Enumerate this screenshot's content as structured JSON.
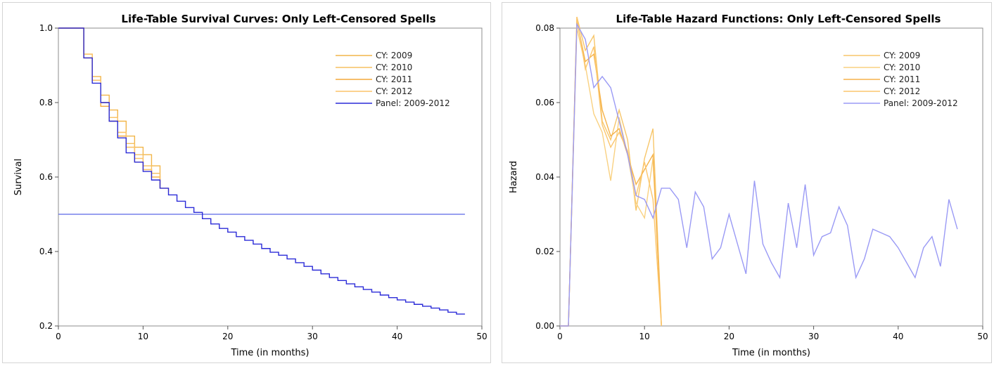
{
  "chart_data": [
    {
      "type": "line",
      "step": true,
      "title": "Life-Table Survival Curves: Only Left-Censored Spells",
      "xlabel": "Time (in months)",
      "ylabel": "Survival",
      "xlim": [
        0,
        50
      ],
      "ylim": [
        0.2,
        1.0
      ],
      "xticks": [
        0,
        10,
        20,
        30,
        40,
        50
      ],
      "yticks": [
        0.2,
        0.4,
        0.6,
        0.8,
        1.0
      ],
      "tick_labels_x": [
        "0",
        "10",
        "20",
        "30",
        "40",
        "50"
      ],
      "tick_labels_y": [
        "0.2",
        "0.4",
        "0.6",
        "0.8",
        "1.0"
      ],
      "legend_position": "top-right",
      "grid": false,
      "reference_line": {
        "y": 0.5,
        "color": "#5a67e6"
      },
      "series": [
        {
          "name": "CY: 2009",
          "color": "#f2b64a",
          "x": [
            0,
            3,
            4,
            5,
            6,
            7,
            8,
            9,
            10,
            11,
            12
          ],
          "y": [
            1.0,
            0.93,
            0.87,
            0.82,
            0.78,
            0.75,
            0.71,
            0.68,
            0.66,
            0.63,
            0.6
          ]
        },
        {
          "name": "CY: 2010",
          "color": "#f5c060",
          "x": [
            0,
            3,
            4,
            5,
            6,
            7,
            8,
            9,
            10,
            11,
            12
          ],
          "y": [
            1.0,
            0.92,
            0.86,
            0.8,
            0.76,
            0.72,
            0.69,
            0.66,
            0.63,
            0.61,
            0.58
          ]
        },
        {
          "name": "CY: 2011",
          "color": "#f3a93a",
          "x": [
            0,
            3,
            4,
            5,
            6,
            7,
            8,
            9,
            10,
            11,
            12
          ],
          "y": [
            1.0,
            0.92,
            0.86,
            0.79,
            0.75,
            0.71,
            0.68,
            0.64,
            0.62,
            0.6,
            0.57
          ]
        },
        {
          "name": "CY: 2012",
          "color": "#fbc46a",
          "x": [
            0,
            3,
            4,
            5,
            6,
            7,
            8,
            9,
            10,
            11,
            12,
            13
          ],
          "y": [
            1.0,
            0.93,
            0.86,
            0.8,
            0.76,
            0.72,
            0.68,
            0.65,
            0.62,
            0.6,
            0.57,
            0.56
          ]
        },
        {
          "name": "Panel: 2009-2012",
          "color": "#2b2bd8",
          "x": [
            0,
            3,
            4,
            5,
            6,
            7,
            8,
            9,
            10,
            11,
            12,
            13,
            14,
            15,
            16,
            17,
            18,
            19,
            20,
            21,
            22,
            23,
            24,
            25,
            26,
            27,
            28,
            29,
            30,
            31,
            32,
            33,
            34,
            35,
            36,
            37,
            38,
            39,
            40,
            41,
            42,
            43,
            44,
            45,
            46,
            47,
            48
          ],
          "y": [
            1.0,
            0.92,
            0.852,
            0.8,
            0.75,
            0.705,
            0.665,
            0.64,
            0.615,
            0.592,
            0.57,
            0.552,
            0.535,
            0.518,
            0.505,
            0.488,
            0.474,
            0.462,
            0.452,
            0.44,
            0.43,
            0.42,
            0.408,
            0.398,
            0.39,
            0.38,
            0.37,
            0.36,
            0.35,
            0.34,
            0.33,
            0.322,
            0.313,
            0.305,
            0.298,
            0.291,
            0.283,
            0.276,
            0.27,
            0.264,
            0.258,
            0.253,
            0.248,
            0.243,
            0.237,
            0.232,
            0.232
          ]
        }
      ]
    },
    {
      "type": "line",
      "title": "Life-Table Hazard Functions: Only Left-Censored Spells",
      "xlabel": "Time (in months)",
      "ylabel": "Hazard",
      "xlim": [
        0,
        50
      ],
      "ylim": [
        0.0,
        0.08
      ],
      "xticks": [
        0,
        10,
        20,
        30,
        40,
        50
      ],
      "yticks": [
        0.0,
        0.02,
        0.04,
        0.06,
        0.08
      ],
      "tick_labels_x": [
        "0",
        "10",
        "20",
        "30",
        "40",
        "50"
      ],
      "tick_labels_y": [
        "0.00",
        "0.02",
        "0.04",
        "0.06",
        "0.08"
      ],
      "legend_position": "top-right",
      "grid": false,
      "series": [
        {
          "name": "CY: 2009",
          "color": "#f7c66a",
          "x": [
            0,
            1,
            2,
            3,
            4,
            5,
            6,
            7,
            8,
            9,
            10,
            11,
            12
          ],
          "y": [
            0.0,
            0.0,
            0.083,
            0.074,
            0.078,
            0.055,
            0.05,
            0.058,
            0.05,
            0.031,
            0.045,
            0.053,
            0.0
          ]
        },
        {
          "name": "CY: 2010",
          "color": "#f9d181",
          "x": [
            0,
            1,
            2,
            3,
            4,
            5,
            6,
            7,
            8,
            9,
            10,
            11,
            12
          ],
          "y": [
            0.0,
            0.0,
            0.08,
            0.07,
            0.057,
            0.052,
            0.039,
            0.056,
            0.046,
            0.033,
            0.029,
            0.045,
            0.0
          ]
        },
        {
          "name": "CY: 2011",
          "color": "#f5b24a",
          "x": [
            0,
            1,
            2,
            3,
            4,
            5,
            6,
            7,
            8,
            9,
            10,
            11,
            12
          ],
          "y": [
            0.0,
            0.0,
            0.082,
            0.071,
            0.073,
            0.058,
            0.051,
            0.053,
            0.046,
            0.038,
            0.042,
            0.046,
            0.0
          ]
        },
        {
          "name": "CY: 2012",
          "color": "#fbc66e",
          "x": [
            0,
            1,
            2,
            3,
            4,
            5,
            6,
            7,
            8,
            9,
            10,
            11,
            12
          ],
          "y": [
            0.0,
            0.0,
            0.083,
            0.069,
            0.075,
            0.054,
            0.048,
            0.052,
            0.047,
            0.035,
            0.044,
            0.034,
            0.0
          ]
        },
        {
          "name": "Panel: 2009-2012",
          "color": "#9a9af5",
          "x": [
            0,
            1,
            2,
            3,
            4,
            5,
            6,
            7,
            8,
            9,
            10,
            11,
            12,
            13,
            14,
            15,
            16,
            17,
            18,
            19,
            20,
            21,
            22,
            23,
            24,
            25,
            26,
            27,
            28,
            29,
            30,
            31,
            32,
            33,
            34,
            35,
            36,
            37,
            38,
            39,
            40,
            41,
            42,
            43,
            44,
            45,
            46,
            47
          ],
          "y": [
            0.0,
            0.0,
            0.081,
            0.077,
            0.064,
            0.067,
            0.064,
            0.055,
            0.046,
            0.035,
            0.034,
            0.029,
            0.037,
            0.037,
            0.034,
            0.021,
            0.036,
            0.032,
            0.018,
            0.021,
            0.03,
            0.022,
            0.014,
            0.039,
            0.022,
            0.017,
            0.013,
            0.033,
            0.021,
            0.038,
            0.019,
            0.024,
            0.025,
            0.032,
            0.027,
            0.013,
            0.018,
            0.026,
            0.025,
            0.024,
            0.021,
            0.017,
            0.013,
            0.021,
            0.024,
            0.016,
            0.034,
            0.026
          ]
        }
      ]
    }
  ]
}
